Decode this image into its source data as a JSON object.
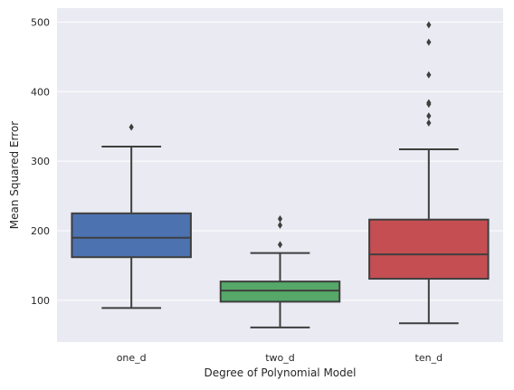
{
  "chart_data": {
    "type": "box",
    "title": "",
    "xlabel": "Degree of Polynomial Model",
    "ylabel": "Mean Squared Error",
    "ylim": [
      40,
      520
    ],
    "yticks": [
      100,
      200,
      300,
      400,
      500
    ],
    "grid": true,
    "background": "#EAEAF2",
    "categories": [
      "one_d",
      "two_d",
      "ten_d"
    ],
    "boxes": [
      {
        "category": "one_d",
        "color": "#4C72B0",
        "whisker_low": 89,
        "q1": 162,
        "median": 190,
        "q3": 225,
        "whisker_high": 321,
        "outliers": [
          349
        ]
      },
      {
        "category": "two_d",
        "color": "#55A868",
        "whisker_low": 61,
        "q1": 98,
        "median": 114,
        "q3": 127,
        "whisker_high": 168,
        "outliers": [
          180,
          208,
          217
        ]
      },
      {
        "category": "ten_d",
        "color": "#C44E52",
        "whisker_low": 67,
        "q1": 131,
        "median": 166,
        "q3": 216,
        "whisker_high": 317,
        "outliers": [
          355,
          365,
          382,
          384,
          424,
          471,
          496
        ]
      }
    ]
  }
}
